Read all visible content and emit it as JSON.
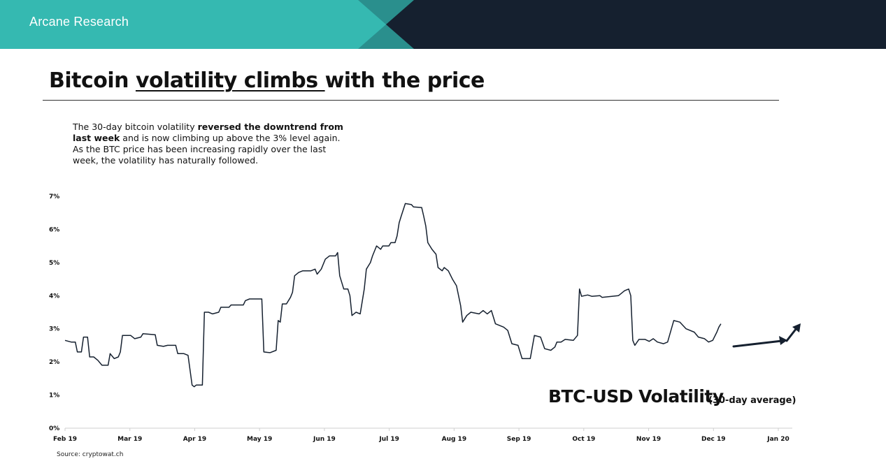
{
  "header": {
    "brand": "Arcane Research"
  },
  "slide": {
    "title_part1": "Bitcoin ",
    "title_underlined": "volatility climbs ",
    "title_part2": "with the price",
    "desc_part1": "The 30-day bitcoin volatility ",
    "desc_bold": "reversed the downtrend from last week",
    "desc_part2": " and is now climbing up above the 3% level again. As the BTC price has been increasing rapidly over the last week, the volatility has naturally followed.",
    "source": "Source: cryptowat.ch"
  },
  "colors": {
    "teal": "#35b9b1",
    "teal_dark": "#2a8f8d",
    "navy": "#15202f",
    "line": "#15202f",
    "axis": "#cfcfcf"
  },
  "chart_data": {
    "type": "line",
    "title": "BTC-USD Volatility",
    "subtitle": "(30-day average)",
    "xlabel": "",
    "ylabel": "",
    "x_ticks": [
      "Feb 19",
      "Mar 19",
      "Apr 19",
      "May 19",
      "Jun 19",
      "Jul 19",
      "Aug 19",
      "Sep 19",
      "Oct 19",
      "Nov 19",
      "Dec 19",
      "Jan 20"
    ],
    "y_ticks": [
      "0%",
      "1%",
      "2%",
      "3%",
      "4%",
      "5%",
      "6%",
      "7%"
    ],
    "ylim": [
      0,
      7
    ],
    "x_range": [
      "2019-02-01",
      "2020-01-15"
    ],
    "grid": false,
    "annotation": "upward trend arrow over early January 2020",
    "series": [
      {
        "values": [
          [
            "2019-02-01",
            2.65
          ],
          [
            "2019-02-04",
            2.6
          ],
          [
            "2019-02-06",
            2.6
          ],
          [
            "2019-02-07",
            2.3
          ],
          [
            "2019-02-09",
            2.3
          ],
          [
            "2019-02-10",
            2.75
          ],
          [
            "2019-02-12",
            2.75
          ],
          [
            "2019-02-13",
            2.15
          ],
          [
            "2019-02-15",
            2.15
          ],
          [
            "2019-02-17",
            2.05
          ],
          [
            "2019-02-19",
            1.9
          ],
          [
            "2019-02-22",
            1.9
          ],
          [
            "2019-02-23",
            2.25
          ],
          [
            "2019-02-25",
            2.1
          ],
          [
            "2019-02-27",
            2.15
          ],
          [
            "2019-02-28",
            2.3
          ],
          [
            "2019-03-01",
            2.8
          ],
          [
            "2019-03-05",
            2.8
          ],
          [
            "2019-03-07",
            2.7
          ],
          [
            "2019-03-10",
            2.75
          ],
          [
            "2019-03-11",
            2.85
          ],
          [
            "2019-03-17",
            2.82
          ],
          [
            "2019-03-18",
            2.5
          ],
          [
            "2019-03-21",
            2.47
          ],
          [
            "2019-03-23",
            2.5
          ],
          [
            "2019-03-27",
            2.5
          ],
          [
            "2019-03-28",
            2.25
          ],
          [
            "2019-03-31",
            2.25
          ],
          [
            "2019-04-02",
            2.2
          ],
          [
            "2019-04-04",
            1.3
          ],
          [
            "2019-04-05",
            1.25
          ],
          [
            "2019-04-06",
            1.3
          ],
          [
            "2019-04-09",
            1.3
          ],
          [
            "2019-04-10",
            3.5
          ],
          [
            "2019-04-12",
            3.5
          ],
          [
            "2019-04-14",
            3.45
          ],
          [
            "2019-04-17",
            3.5
          ],
          [
            "2019-04-18",
            3.65
          ],
          [
            "2019-04-22",
            3.65
          ],
          [
            "2019-04-23",
            3.72
          ],
          [
            "2019-04-29",
            3.72
          ],
          [
            "2019-04-30",
            3.85
          ],
          [
            "2019-05-02",
            3.9
          ],
          [
            "2019-05-08",
            3.9
          ],
          [
            "2019-05-09",
            2.3
          ],
          [
            "2019-05-12",
            2.28
          ],
          [
            "2019-05-15",
            2.35
          ],
          [
            "2019-05-16",
            3.25
          ],
          [
            "2019-05-17",
            3.2
          ],
          [
            "2019-05-18",
            3.75
          ],
          [
            "2019-05-20",
            3.75
          ],
          [
            "2019-05-22",
            3.95
          ],
          [
            "2019-05-23",
            4.1
          ],
          [
            "2019-05-24",
            4.6
          ],
          [
            "2019-05-26",
            4.7
          ],
          [
            "2019-05-28",
            4.75
          ],
          [
            "2019-06-01",
            4.75
          ],
          [
            "2019-06-03",
            4.8
          ],
          [
            "2019-06-04",
            4.65
          ],
          [
            "2019-06-06",
            4.8
          ],
          [
            "2019-06-08",
            5.1
          ],
          [
            "2019-06-10",
            5.2
          ],
          [
            "2019-06-13",
            5.2
          ],
          [
            "2019-06-14",
            5.3
          ],
          [
            "2019-06-15",
            4.6
          ],
          [
            "2019-06-16",
            4.4
          ],
          [
            "2019-06-17",
            4.2
          ],
          [
            "2019-06-19",
            4.2
          ],
          [
            "2019-06-20",
            4.0
          ],
          [
            "2019-06-21",
            3.4
          ],
          [
            "2019-06-23",
            3.5
          ],
          [
            "2019-06-25",
            3.45
          ],
          [
            "2019-06-27",
            4.2
          ],
          [
            "2019-06-28",
            4.8
          ],
          [
            "2019-06-30",
            5.0
          ],
          [
            "2019-07-01",
            5.2
          ],
          [
            "2019-07-03",
            5.5
          ],
          [
            "2019-07-05",
            5.4
          ],
          [
            "2019-07-06",
            5.5
          ],
          [
            "2019-07-09",
            5.5
          ],
          [
            "2019-07-10",
            5.6
          ],
          [
            "2019-07-12",
            5.6
          ],
          [
            "2019-07-13",
            5.8
          ],
          [
            "2019-07-14",
            6.2
          ],
          [
            "2019-07-15",
            6.4
          ],
          [
            "2019-07-17",
            6.78
          ],
          [
            "2019-07-20",
            6.75
          ],
          [
            "2019-07-21",
            6.68
          ],
          [
            "2019-07-25",
            6.66
          ],
          [
            "2019-07-26",
            6.4
          ],
          [
            "2019-07-27",
            6.1
          ],
          [
            "2019-07-28",
            5.6
          ],
          [
            "2019-07-30",
            5.4
          ],
          [
            "2019-08-01",
            5.25
          ],
          [
            "2019-08-02",
            4.85
          ],
          [
            "2019-08-04",
            4.75
          ],
          [
            "2019-08-05",
            4.85
          ],
          [
            "2019-08-07",
            4.75
          ],
          [
            "2019-08-09",
            4.5
          ],
          [
            "2019-08-11",
            4.3
          ],
          [
            "2019-08-13",
            3.7
          ],
          [
            "2019-08-14",
            3.2
          ],
          [
            "2019-08-16",
            3.4
          ],
          [
            "2019-08-18",
            3.5
          ],
          [
            "2019-08-22",
            3.45
          ],
          [
            "2019-08-24",
            3.55
          ],
          [
            "2019-08-26",
            3.45
          ],
          [
            "2019-08-28",
            3.55
          ],
          [
            "2019-08-30",
            3.15
          ],
          [
            "2019-09-03",
            3.05
          ],
          [
            "2019-09-05",
            2.95
          ],
          [
            "2019-09-07",
            2.55
          ],
          [
            "2019-09-10",
            2.5
          ],
          [
            "2019-09-12",
            2.1
          ],
          [
            "2019-09-16",
            2.1
          ],
          [
            "2019-09-18",
            2.8
          ],
          [
            "2019-09-21",
            2.75
          ],
          [
            "2019-09-23",
            2.4
          ],
          [
            "2019-09-26",
            2.35
          ],
          [
            "2019-09-28",
            2.45
          ],
          [
            "2019-09-29",
            2.6
          ],
          [
            "2019-10-01",
            2.6
          ],
          [
            "2019-10-03",
            2.68
          ],
          [
            "2019-10-07",
            2.65
          ],
          [
            "2019-10-09",
            2.8
          ],
          [
            "2019-10-10",
            4.2
          ],
          [
            "2019-10-11",
            3.98
          ],
          [
            "2019-10-14",
            4.02
          ],
          [
            "2019-10-16",
            3.98
          ],
          [
            "2019-10-20",
            4.0
          ],
          [
            "2019-10-21",
            3.95
          ],
          [
            "2019-10-29",
            4.0
          ],
          [
            "2019-11-01",
            4.15
          ],
          [
            "2019-11-03",
            4.2
          ],
          [
            "2019-11-04",
            4.0
          ],
          [
            "2019-11-05",
            2.65
          ],
          [
            "2019-11-06",
            2.5
          ],
          [
            "2019-11-08",
            2.68
          ],
          [
            "2019-11-11",
            2.68
          ],
          [
            "2019-11-13",
            2.62
          ],
          [
            "2019-11-15",
            2.7
          ],
          [
            "2019-11-17",
            2.6
          ],
          [
            "2019-11-20",
            2.55
          ],
          [
            "2019-11-22",
            2.6
          ],
          [
            "2019-11-25",
            3.25
          ],
          [
            "2019-11-28",
            3.2
          ],
          [
            "2019-12-01",
            3.0
          ],
          [
            "2019-12-05",
            2.9
          ],
          [
            "2019-12-07",
            2.75
          ],
          [
            "2019-12-10",
            2.7
          ],
          [
            "2019-12-12",
            2.6
          ],
          [
            "2019-12-14",
            2.65
          ],
          [
            "2019-12-16",
            2.9
          ],
          [
            "2019-12-17",
            3.05
          ],
          [
            "2019-12-18",
            3.15
          ]
        ]
      }
    ]
  }
}
